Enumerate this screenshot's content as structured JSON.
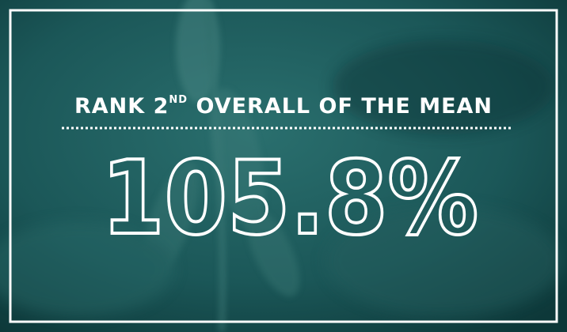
{
  "headline": {
    "before": "RANK 2",
    "superscript": "ND",
    "after": " OVERALL OF THE MEAN"
  },
  "figure": "105.8%"
}
